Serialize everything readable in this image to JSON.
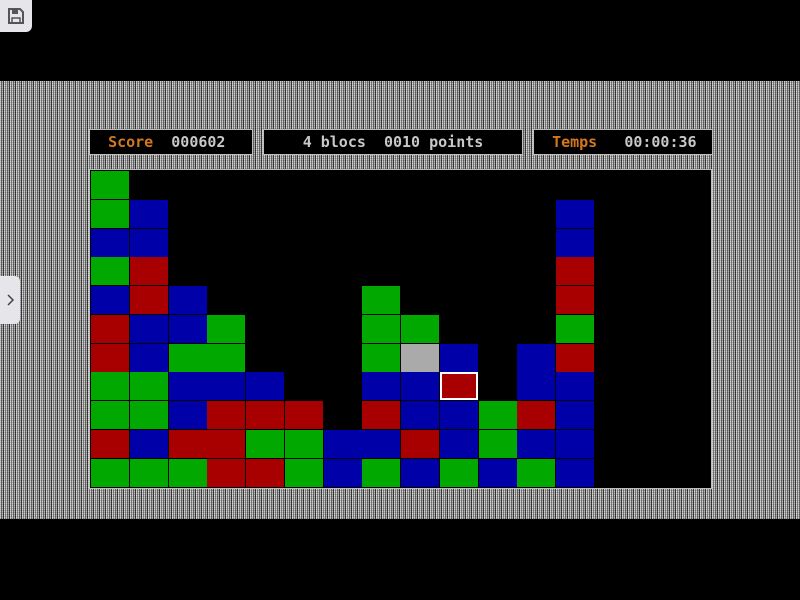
{
  "hud": {
    "score_label": "Score",
    "score_value": "000602",
    "selection_text": "4 blocs  0010 points",
    "time_label": "Temps",
    "time_value": "00:00:36"
  },
  "board": {
    "columns": 16,
    "rows": 11,
    "legend": {
      "G": "green",
      "B": "blue",
      "R": "red",
      "W": "grey",
      ".": "empty"
    },
    "colors": {
      "G": "#00a800",
      "B": "#0000a8",
      "R": "#a80000",
      "W": "#aaaaaa"
    },
    "grid": [
      "G...............",
      "GB..........B...",
      "BB..........B...",
      "GR..........R...",
      "BRB....G....R...",
      "RBBG...GG...G...",
      "RBGG...GWB.BR...",
      "GGBBB..BBR.BB...",
      "GGBRRR.RBBGRB...",
      "RBRRGGBBRBGBB...",
      "GGGRRGBGBGBGB..."
    ],
    "selected_cell": {
      "row": 7,
      "col": 9
    }
  },
  "icons": {
    "save": "floppy-disk-icon",
    "sidebar": "chevron-right-icon"
  }
}
